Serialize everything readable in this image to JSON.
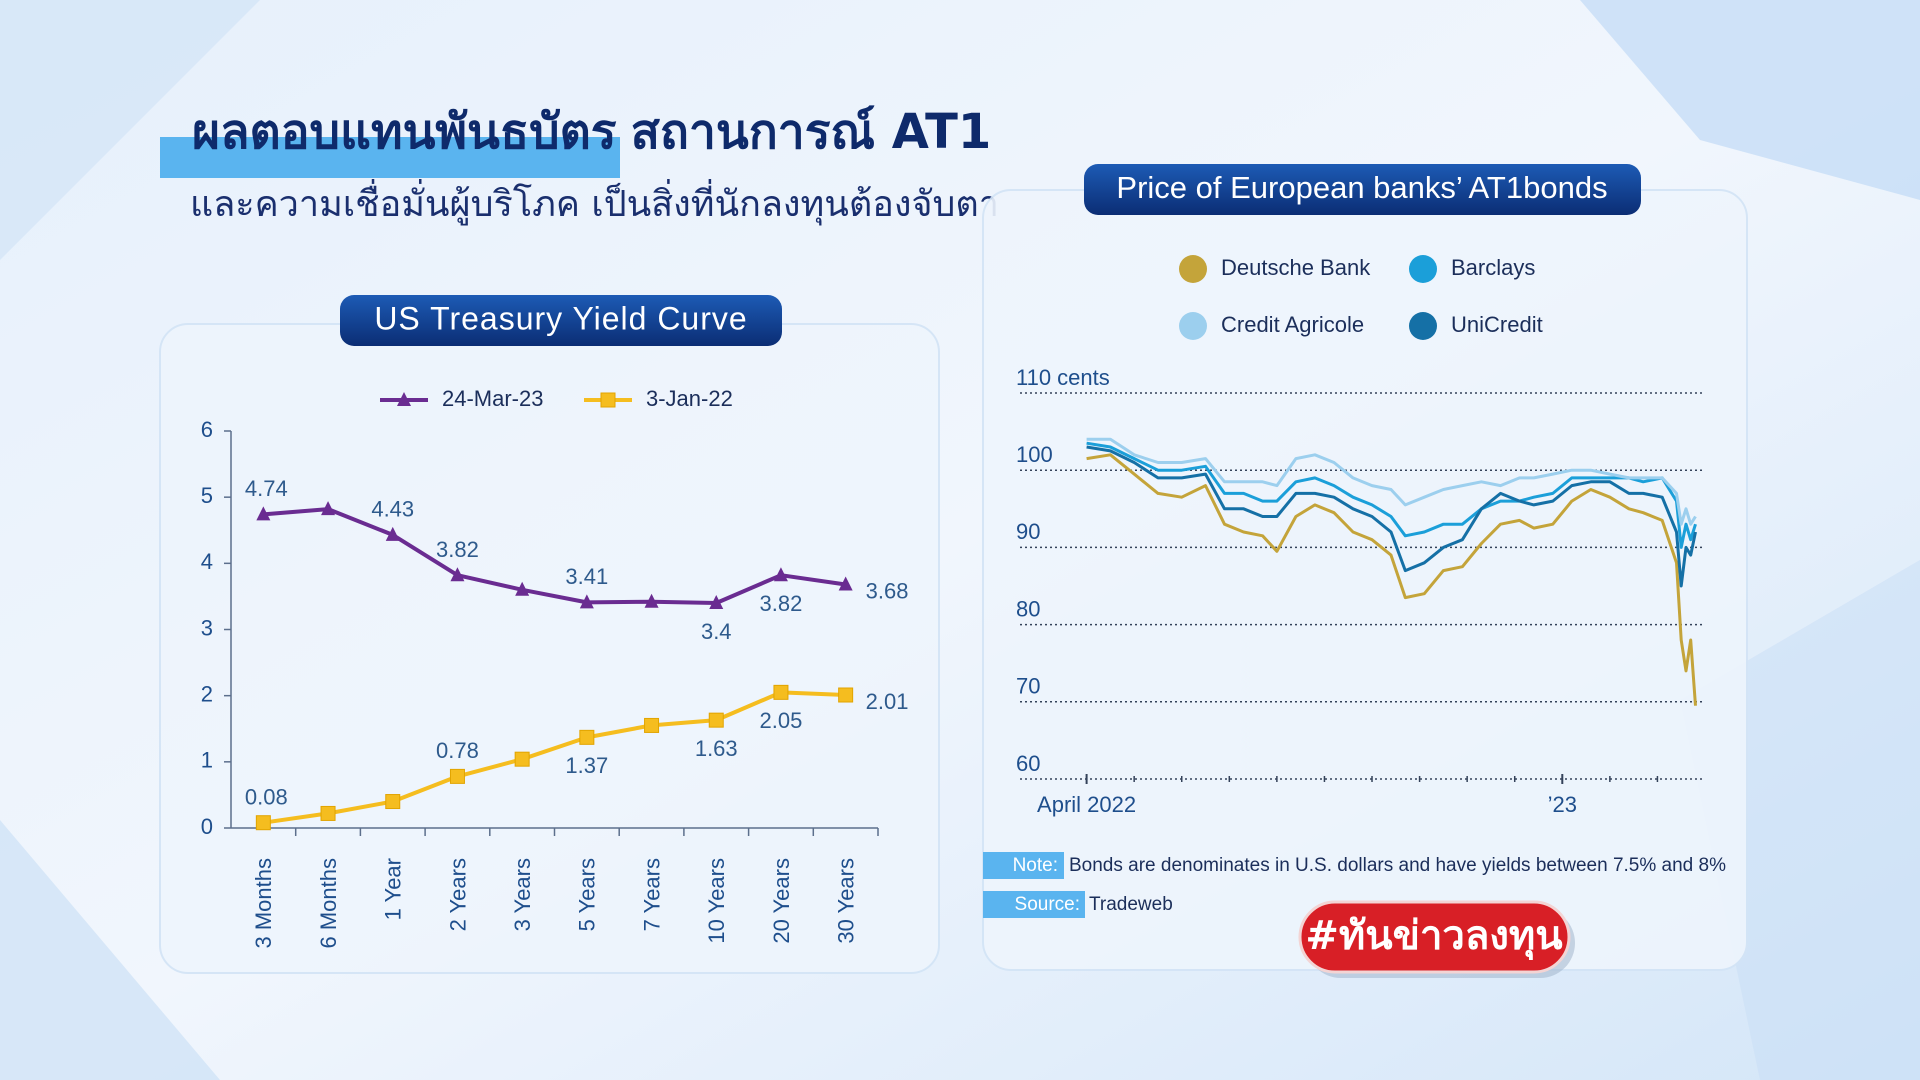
{
  "header": {
    "title_highlight": "ผลตอบแทนพันธบัตร",
    "title_rest": "สถานการณ์ AT1",
    "subtitle": "และความเชื่อมั่นผู้บริโภค เป็นสิ่งที่นักลงทุนต้องจับตา"
  },
  "chart_data": [
    {
      "type": "line",
      "title": "US Treasury Yield  Curve",
      "categories": [
        "3 Months",
        "6 Months",
        "1 Year",
        "2 Years",
        "3 Years",
        "5 Years",
        "7 Years",
        "10 Years",
        "20 Years",
        "30 Years"
      ],
      "series": [
        {
          "name": "24-Mar-23",
          "color": "#6a2c91",
          "marker": "triangle",
          "values": [
            4.74,
            4.82,
            4.43,
            3.82,
            3.6,
            3.41,
            3.42,
            3.4,
            3.82,
            3.68
          ],
          "value_labels": [
            "4.74",
            null,
            "4.43",
            "3.82",
            null,
            "3.41",
            null,
            "3.4",
            "3.82",
            "3.68"
          ]
        },
        {
          "name": "3-Jan-22",
          "color": "#f5bd1f",
          "marker": "square",
          "values": [
            0.08,
            0.22,
            0.4,
            0.78,
            1.04,
            1.37,
            1.55,
            1.63,
            2.05,
            2.01
          ],
          "value_labels": [
            "0.08",
            null,
            null,
            "0.78",
            null,
            "1.37",
            null,
            "1.63",
            "2.05",
            "2.01"
          ]
        }
      ],
      "ylim": [
        0,
        6
      ],
      "yticks": [
        0,
        1,
        2,
        3,
        4,
        5,
        6
      ],
      "grid": false
    },
    {
      "type": "line",
      "title": "Price of European banks’ AT1bonds",
      "x": [
        0,
        0.5,
        1,
        1.5,
        2,
        2.5,
        2.9,
        3.3,
        3.7,
        4,
        4.4,
        4.8,
        5.2,
        5.6,
        6,
        6.4,
        6.7,
        7.1,
        7.5,
        7.9,
        8.3,
        8.7,
        9.1,
        9.4,
        9.8,
        10.2,
        10.6,
        11,
        11.4,
        11.7,
        12.1,
        12.4,
        12.5,
        12.6,
        12.7,
        12.8
      ],
      "series": [
        {
          "name": "Deutsche Bank",
          "color": "#c4a43a",
          "values": [
            101.5,
            102,
            99.5,
            97,
            96.5,
            98,
            93,
            92,
            91.5,
            89.5,
            94,
            95.5,
            94.5,
            92,
            91,
            89,
            83.5,
            84,
            87,
            87.5,
            90.5,
            93,
            93.5,
            92.5,
            93,
            96,
            97.5,
            96.5,
            95,
            94.5,
            93.5,
            88,
            78,
            74,
            78,
            69.5
          ]
        },
        {
          "name": "Barclays",
          "color": "#1b9fd9",
          "values": [
            103.5,
            103,
            101.5,
            100,
            100,
            100.5,
            97,
            97,
            96,
            96,
            98.5,
            99,
            98,
            96.5,
            95.5,
            94,
            91.5,
            92,
            93,
            93,
            95,
            96,
            96,
            96.5,
            97,
            99,
            99,
            99,
            99,
            98.5,
            99,
            96,
            90,
            93,
            91,
            93
          ]
        },
        {
          "name": "Credit Agricole",
          "color": "#9ccfee",
          "values": [
            104,
            104,
            102,
            101,
            101,
            101.5,
            98.5,
            98.5,
            98.5,
            98,
            101.5,
            102,
            101,
            99,
            98,
            97.5,
            95.5,
            96.5,
            97.5,
            98,
            98.5,
            98,
            99,
            99,
            99.5,
            100,
            100,
            99.5,
            99,
            99,
            99,
            97,
            93,
            95,
            93,
            94
          ]
        },
        {
          "name": "UniCredit",
          "color": "#1570a6",
          "values": [
            103,
            102.5,
            101,
            99,
            99,
            99.5,
            95,
            95,
            94,
            94,
            97,
            97,
            96.5,
            95,
            94,
            92,
            87,
            88,
            90,
            91,
            95,
            97,
            96,
            95.5,
            96,
            98,
            98.5,
            98.5,
            97,
            97,
            96.5,
            92,
            85,
            90,
            89,
            92
          ]
        }
      ],
      "xlim": [
        -1.4,
        13
      ],
      "xticks": [
        {
          "value": 0,
          "label": "April 2022"
        },
        {
          "value": 10,
          "label": "’23"
        }
      ],
      "minor_xticks": [
        1,
        2,
        3,
        4,
        5,
        6,
        7,
        8,
        9,
        11,
        12
      ],
      "ylim": [
        60,
        110
      ],
      "yticks": [
        60,
        70,
        80,
        90,
        100,
        {
          "value": 110,
          "label": "110 cents"
        }
      ],
      "grid": true
    }
  ],
  "note": {
    "label": "Note:",
    "text": "Bonds are denominates in U.S. dollars and have yields between 7.5% and 8%"
  },
  "source": {
    "label": "Source:",
    "text": "Tradeweb"
  },
  "hashtag": "#ทันข่าวลงทุน"
}
